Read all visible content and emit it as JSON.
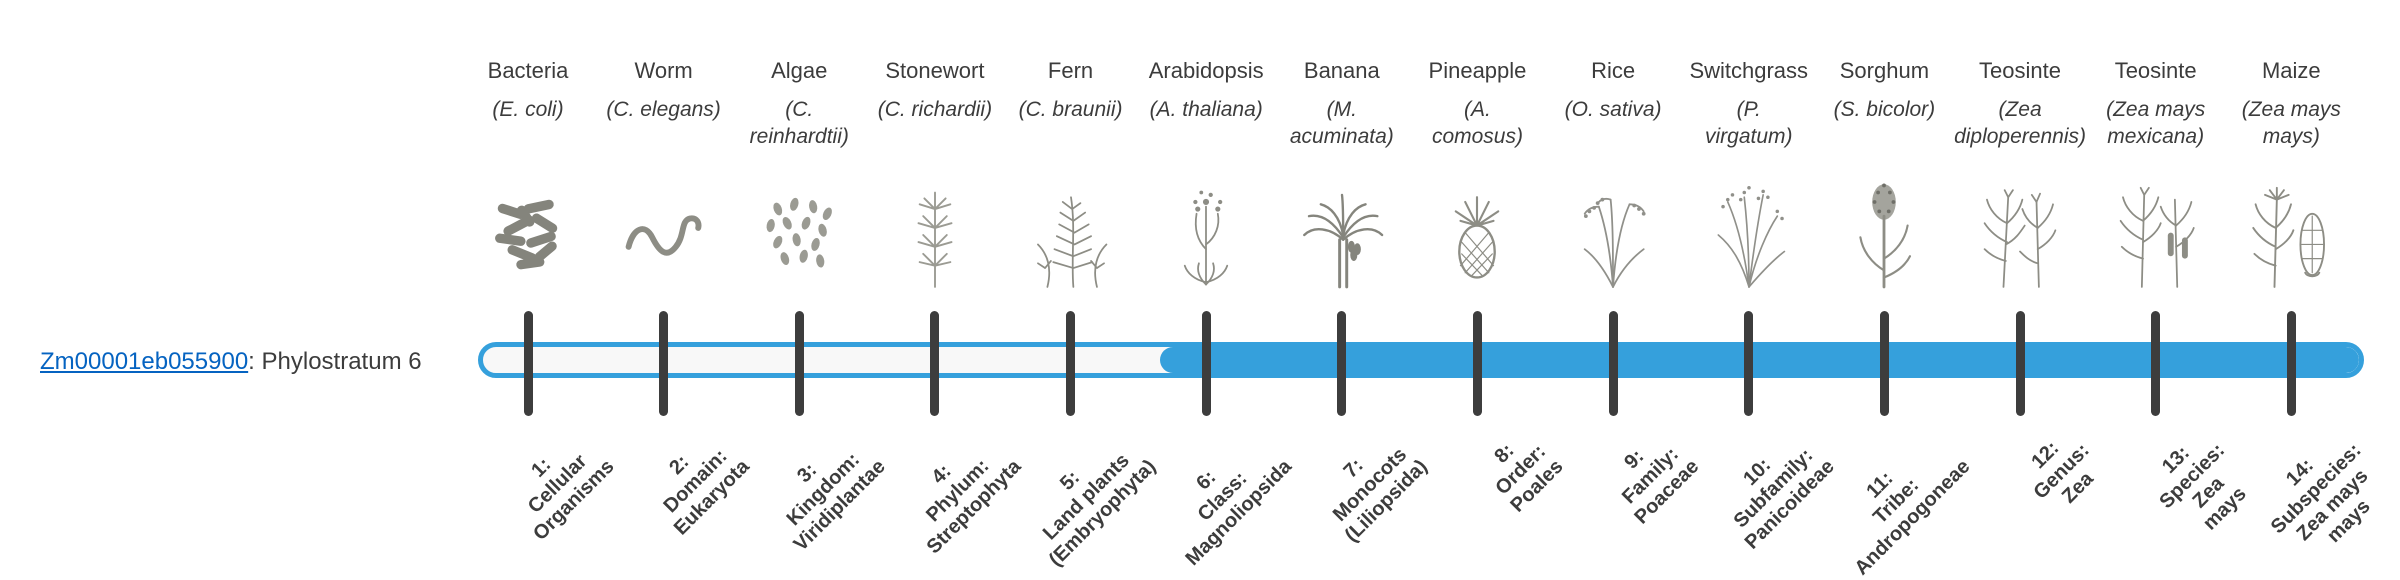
{
  "colors": {
    "link": "#0563c1",
    "text": "#3c3c3c",
    "illustration": "#8d8d85"
  },
  "gene": {
    "id": "Zm00001eb055900",
    "suffix": ": Phylostratum 6"
  },
  "bar": {
    "fill_color": "#35a0dc",
    "outline_color": "#35a0dc",
    "track_color": "#f8f8f8",
    "tick_color": "#3d3d3d",
    "filled_from_stratum": 6,
    "total_strata": 14
  },
  "organisms": [
    {
      "common_name": "Bacteria",
      "scientific_name": "(E. coli)",
      "icon": "bacteria-illustration",
      "stratum_label": "1:\nCellular\nOrganisms"
    },
    {
      "common_name": "Worm",
      "scientific_name": "(C. elegans)",
      "icon": "worm-illustration",
      "stratum_label": "2:\nDomain:\nEukaryota"
    },
    {
      "common_name": "Algae",
      "scientific_name": "(C.\nreinhardtii)",
      "icon": "algae-illustration",
      "stratum_label": "3:\nKingdom:\nViridiplantae"
    },
    {
      "common_name": "Stonewort",
      "scientific_name": "(C. richardii)",
      "icon": "stonewort-illustration",
      "stratum_label": "4:\nPhylum:\nStreptophyta"
    },
    {
      "common_name": "Fern",
      "scientific_name": "(C. braunii)",
      "icon": "fern-illustration",
      "stratum_label": "5:\nLand plants\n(Embryophyta)"
    },
    {
      "common_name": "Arabidopsis",
      "scientific_name": "(A. thaliana)",
      "icon": "arabidopsis-illustration",
      "stratum_label": "6:\nClass:\nMagnoliopsida"
    },
    {
      "common_name": "Banana",
      "scientific_name": "(M.\nacuminata)",
      "icon": "banana-illustration",
      "stratum_label": "7:\nMonocots\n(Liliopsida)"
    },
    {
      "common_name": "Pineapple",
      "scientific_name": "(A.\ncomosus)",
      "icon": "pineapple-illustration",
      "stratum_label": "8:\nOrder:\nPoales"
    },
    {
      "common_name": "Rice",
      "scientific_name": "(O. sativa)",
      "icon": "rice-illustration",
      "stratum_label": "9:\nFamily:\nPoaceae"
    },
    {
      "common_name": "Switchgrass",
      "scientific_name": "(P.\nvirgatum)",
      "icon": "switchgrass-illustration",
      "stratum_label": "10:\nSubfamily:\nPanicoideae"
    },
    {
      "common_name": "Sorghum",
      "scientific_name": "(S. bicolor)",
      "icon": "sorghum-illustration",
      "stratum_label": "11:\nTribe:\nAndropogoneae"
    },
    {
      "common_name": "Teosinte",
      "scientific_name": "(Zea\ndiploperennis)",
      "icon": "teosinte-diploperennis-illustration",
      "stratum_label": "12:\nGenus:\nZea"
    },
    {
      "common_name": "Teosinte",
      "scientific_name": "(Zea mays\nmexicana)",
      "icon": "teosinte-mexicana-illustration",
      "stratum_label": "13:\nSpecies:\nZea\nmays"
    },
    {
      "common_name": "Maize",
      "scientific_name": "(Zea mays\nmays)",
      "icon": "maize-illustration",
      "stratum_label": "14:\nSubspecies:\nZea mays\nmays"
    }
  ]
}
